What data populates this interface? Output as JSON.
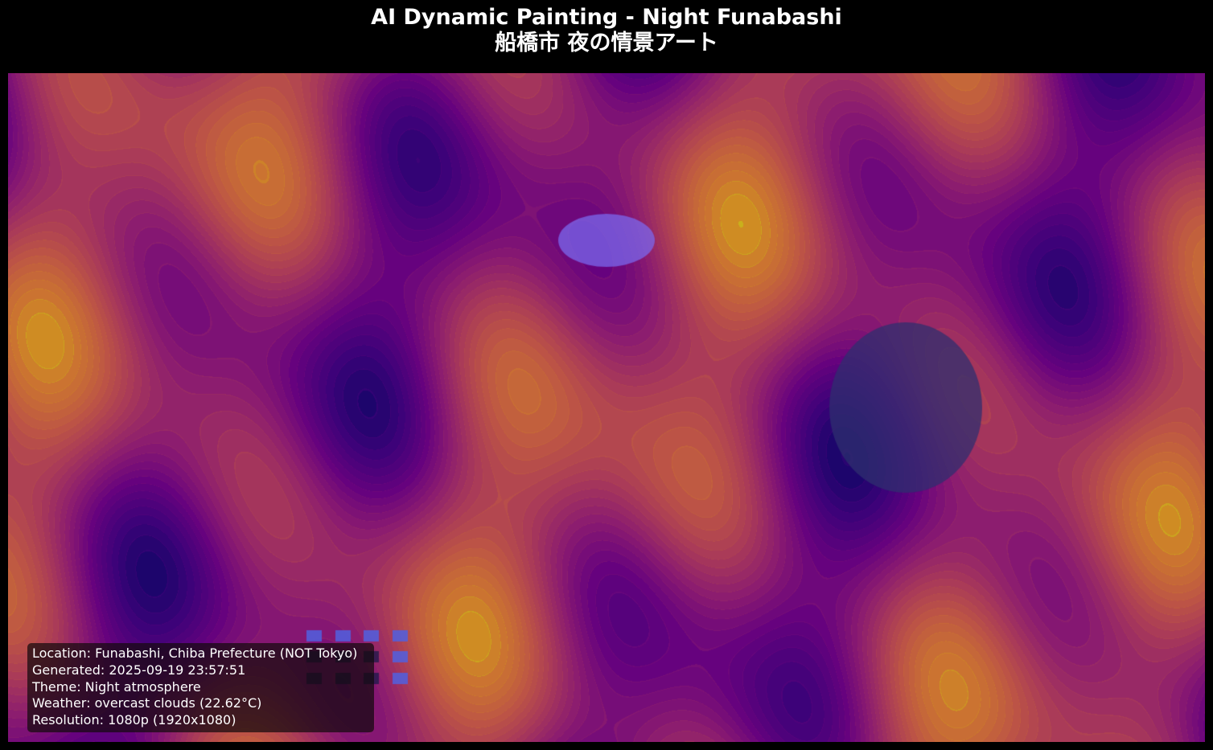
{
  "title": {
    "main": "AI Dynamic Painting - Night Funabashi",
    "sub": "船橋市 夜の情景アート"
  },
  "info": {
    "location": "Location: Funabashi, Chiba Prefecture (NOT Tokyo)",
    "generated": "Generated: 2025-09-19 23:57:51",
    "theme": "Theme: Night atmosphere",
    "weather": "Weather: overcast clouds (22.62°C)",
    "resolution": "Resolution: 1080p (1920x1080)"
  },
  "colors": {
    "background": "#000000",
    "colormap": "plasma",
    "moon": "#7b68ee",
    "cloud": "#2f2f6f",
    "window_lit": "#5060e0",
    "window_dim": "#1a1a4a"
  },
  "icons": {
    "moon": "moon-ellipse",
    "cloud": "cloud-ellipse",
    "building_windows": "window-squares"
  }
}
